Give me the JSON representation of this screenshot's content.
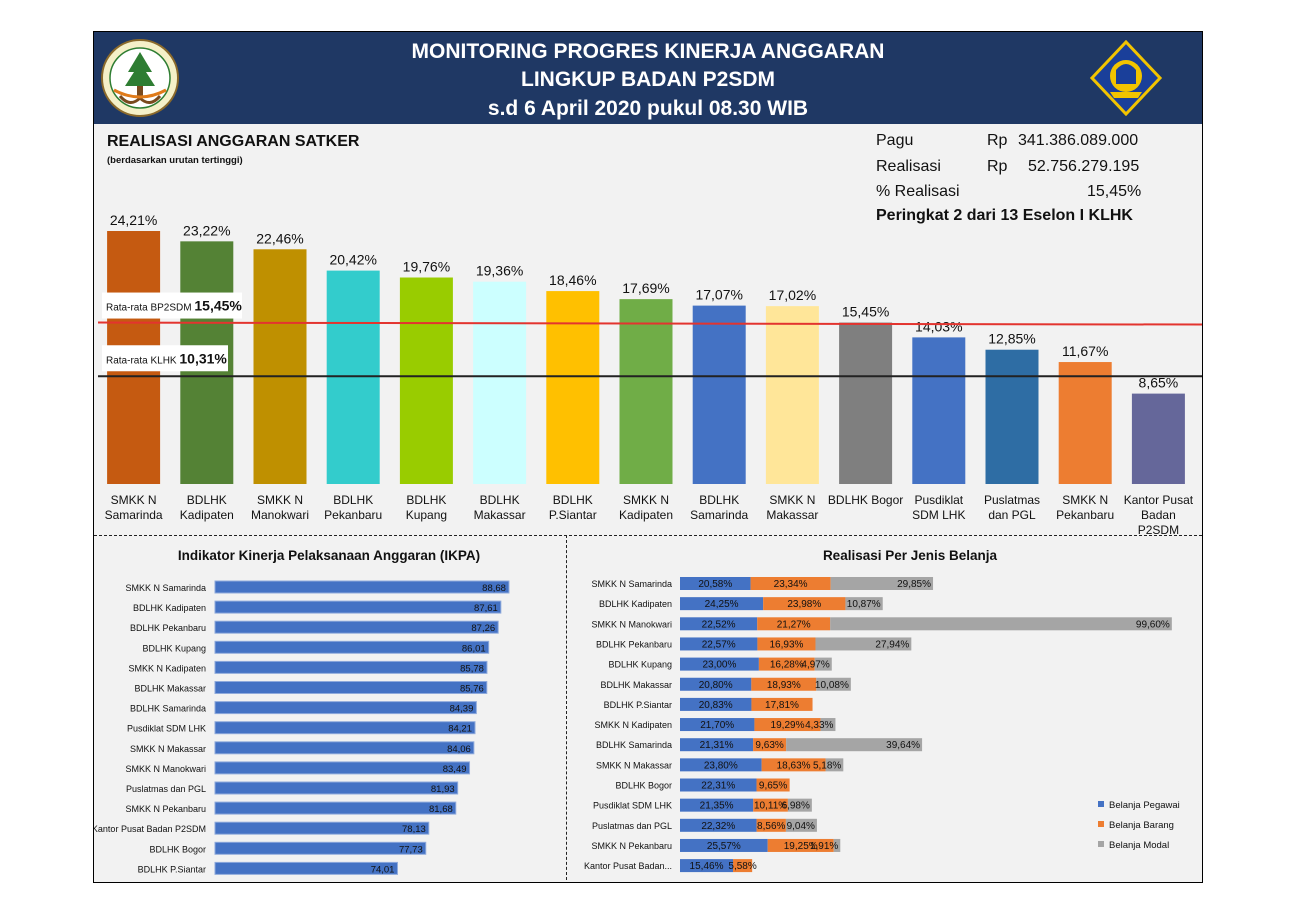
{
  "header": {
    "line1": "MONITORING PROGRES KINERJA ANGGARAN",
    "line2": "LINGKUP BADAN P2SDM",
    "line3": "s.d 6 April 2020 pukul 08.30 WIB"
  },
  "summary": {
    "pagu_label": "Pagu",
    "pagu_currency": "Rp",
    "pagu_value": "341.386.089.000",
    "realisasi_label": "Realisasi",
    "realisasi_currency": "Rp",
    "realisasi_value": "52.756.279.195",
    "persen_label": "% Realisasi",
    "persen_value": "15,45%",
    "peringkat": "Peringkat 2 dari 13 Eselon I KLHK"
  },
  "chart_data": [
    {
      "type": "bar",
      "title": "REALISASI ANGGARAN SATKER",
      "subtitle": "(berdasarkan urutan tertinggi)",
      "categories": [
        [
          "SMKK N",
          "Samarinda"
        ],
        [
          "BDLHK",
          "Kadipaten"
        ],
        [
          "SMKK N",
          "Manokwari"
        ],
        [
          "BDLHK",
          "Pekanbaru"
        ],
        [
          "BDLHK",
          "Kupang"
        ],
        [
          "BDLHK",
          "Makassar"
        ],
        [
          "BDLHK",
          "P.Siantar"
        ],
        [
          "SMKK N",
          "Kadipaten"
        ],
        [
          "BDLHK",
          "Samarinda"
        ],
        [
          "SMKK N",
          "Makassar"
        ],
        [
          "BDLHK Bogor"
        ],
        [
          "Pusdiklat",
          "SDM LHK"
        ],
        [
          "Puslatmas",
          "dan PGL"
        ],
        [
          "SMKK N",
          "Pekanbaru"
        ],
        [
          "Kantor Pusat",
          "Badan",
          "P2SDM"
        ]
      ],
      "values": [
        24.21,
        23.22,
        22.46,
        20.42,
        19.76,
        19.36,
        18.46,
        17.69,
        17.07,
        17.02,
        15.45,
        14.03,
        12.85,
        11.67,
        8.65
      ],
      "labels": [
        "24,21%",
        "23,22%",
        "22,46%",
        "20,42%",
        "19,76%",
        "19,36%",
        "18,46%",
        "17,69%",
        "17,07%",
        "17,02%",
        "15,45%",
        "14,03%",
        "12,85%",
        "11,67%",
        "8,65%"
      ],
      "colors": [
        "#c55a11",
        "#548235",
        "#bf9000",
        "#33cccc",
        "#99cc00",
        "#ccffff",
        "#ffc000",
        "#70ad47",
        "#4472c4",
        "#ffe699",
        "#7f7f7f",
        "#4472c4",
        "#2e6da4",
        "#ed7d31",
        "#65679a"
      ],
      "ylim": [
        0,
        26
      ],
      "ref_lines": [
        {
          "label": "Rata-rata BP2SDM",
          "value_text": "15,45%",
          "value": 15.45,
          "color": "#e3342f"
        },
        {
          "label": "Rata-rata KLHK",
          "value_text": "10,31%",
          "value": 10.31,
          "color": "#222222"
        }
      ]
    },
    {
      "type": "bar",
      "orientation": "horizontal",
      "title": "Indikator Kinerja Pelaksanaan Anggaran (IKPA)",
      "categories": [
        "SMKK N Samarinda",
        "BDLHK Kadipaten",
        "BDLHK Pekanbaru",
        "BDLHK Kupang",
        "SMKK N Kadipaten",
        "BDLHK Makassar",
        "BDLHK Samarinda",
        "Pusdiklat SDM LHK",
        "SMKK N Makassar",
        "SMKK N Manokwari",
        "Puslatmas dan PGL",
        "SMKK N Pekanbaru",
        "Kantor Pusat Badan P2SDM",
        "BDLHK Bogor",
        "BDLHK P.Siantar"
      ],
      "values": [
        88.68,
        87.61,
        87.26,
        86.01,
        85.78,
        85.76,
        84.39,
        84.21,
        84.06,
        83.49,
        81.93,
        81.68,
        78.13,
        77.73,
        74.01
      ],
      "labels": [
        "88,68",
        "87,61",
        "87,26",
        "86,01",
        "85,78",
        "85,76",
        "84,39",
        "84,21",
        "84,06",
        "83,49",
        "81,93",
        "81,68",
        "78,13",
        "77,73",
        "74,01"
      ],
      "xlim": [
        50,
        90
      ],
      "color": "#4472c4"
    },
    {
      "type": "bar",
      "orientation": "horizontal",
      "stacked": true,
      "title": "Realisasi Per Jenis Belanja",
      "categories": [
        "SMKK N Samarinda",
        "BDLHK Kadipaten",
        "SMKK N Manokwari",
        "BDLHK Pekanbaru",
        "BDLHK Kupang",
        "BDLHK Makassar",
        "BDLHK P.Siantar",
        "SMKK N Kadipaten",
        "BDLHK Samarinda",
        "SMKK N Makassar",
        "BDLHK Bogor",
        "Pusdiklat SDM LHK",
        "Puslatmas dan PGL",
        "SMKK N Pekanbaru",
        "Kantor Pusat Badan..."
      ],
      "series": [
        {
          "name": "Belanja Pegawai",
          "color": "#4472c4",
          "values": [
            20.58,
            24.25,
            22.52,
            22.57,
            23.0,
            20.8,
            20.83,
            21.7,
            21.31,
            23.8,
            22.31,
            21.35,
            22.32,
            25.57,
            15.46
          ],
          "labels": [
            "20,58%",
            "24,25%",
            "22,52%",
            "22,57%",
            "23,00%",
            "20,80%",
            "20,83%",
            "21,70%",
            "21,31%",
            "23,80%",
            "22,31%",
            "21,35%",
            "22,32%",
            "25,57%",
            "15,46%"
          ]
        },
        {
          "name": "Belanja Barang",
          "color": "#ed7d31",
          "values": [
            23.34,
            23.98,
            21.27,
            16.93,
            16.28,
            18.93,
            17.81,
            19.29,
            9.63,
            18.63,
            9.65,
            10.11,
            8.56,
            19.25,
            5.58
          ],
          "labels": [
            "23,34%",
            "23,98%",
            "21,27%",
            "16,93%",
            "16,28%",
            "18,93%",
            "17,81%",
            "19,29%",
            "9,63%",
            "18,63%",
            "9,65%",
            "10,11%",
            "8,56%",
            "19,25%",
            "5,58%"
          ]
        },
        {
          "name": "Belanja Modal",
          "color": "#a5a5a5",
          "values": [
            29.85,
            10.87,
            99.6,
            27.94,
            4.97,
            10.08,
            0,
            4.33,
            39.64,
            5.18,
            0,
            6.98,
            9.04,
            1.91,
            0
          ],
          "labels": [
            "29,85%",
            "10,87%",
            "99,60%",
            "27,94%",
            "4,97%",
            "10,08%",
            "",
            "4,33%",
            "39,64%",
            "5,18%",
            "",
            "6,98%",
            "9,04%",
            "1,91%",
            ""
          ]
        }
      ],
      "legend_position": "right-bottom"
    }
  ]
}
